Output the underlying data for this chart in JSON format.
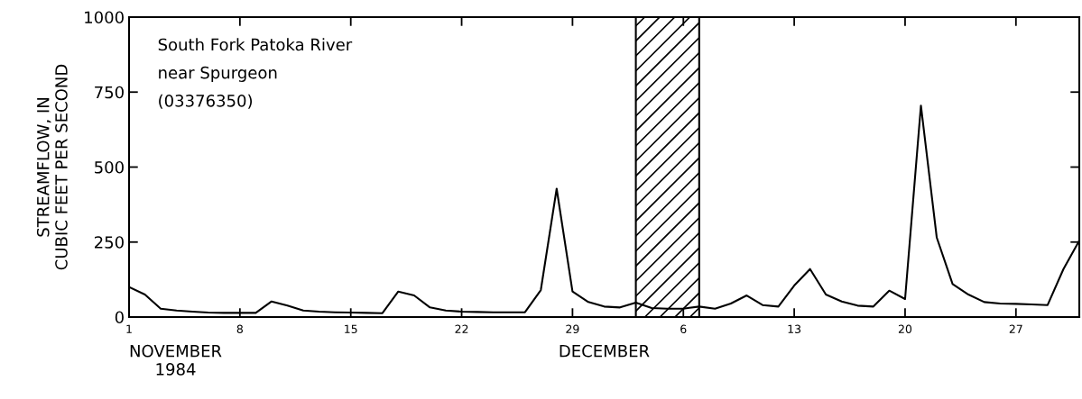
{
  "chart_data": {
    "type": "line",
    "ylabel": "STREAMFLOW, IN\nCUBIC FEET PER SECOND",
    "annotations": [
      "South Fork Patoka River\nnear Spurgeon\n(03376350)",
      "NOVEMBER\n1984",
      "DECEMBER"
    ],
    "x": [
      "1984-11-01",
      "1984-11-02",
      "1984-11-03",
      "1984-11-04",
      "1984-11-05",
      "1984-11-06",
      "1984-11-07",
      "1984-11-08",
      "1984-11-09",
      "1984-11-10",
      "1984-11-11",
      "1984-11-12",
      "1984-11-13",
      "1984-11-14",
      "1984-11-15",
      "1984-11-16",
      "1984-11-17",
      "1984-11-18",
      "1984-11-19",
      "1984-11-20",
      "1984-11-21",
      "1984-11-22",
      "1984-11-23",
      "1984-11-24",
      "1984-11-25",
      "1984-11-26",
      "1984-11-27",
      "1984-11-28",
      "1984-11-29",
      "1984-11-30",
      "1984-12-01",
      "1984-12-02",
      "1984-12-03",
      "1984-12-04",
      "1984-12-05",
      "1984-12-06",
      "1984-12-07",
      "1984-12-08",
      "1984-12-09",
      "1984-12-10",
      "1984-12-11",
      "1984-12-12",
      "1984-12-13",
      "1984-12-14",
      "1984-12-15",
      "1984-12-16",
      "1984-12-17",
      "1984-12-18",
      "1984-12-19",
      "1984-12-20",
      "1984-12-21",
      "1984-12-22",
      "1984-12-23",
      "1984-12-24",
      "1984-12-25",
      "1984-12-26",
      "1984-12-27",
      "1984-12-28",
      "1984-12-29",
      "1984-12-30",
      "1984-12-31"
    ],
    "series": [
      {
        "color": "#000000",
        "values": [
          100,
          75,
          28,
          22,
          18,
          15,
          14,
          14,
          14,
          52,
          38,
          22,
          18,
          16,
          15,
          14,
          13,
          85,
          72,
          32,
          22,
          18,
          17,
          16,
          16,
          16,
          90,
          428,
          85,
          50,
          35,
          32,
          48,
          30,
          28,
          28,
          35,
          28,
          45,
          72,
          40,
          35,
          105,
          160,
          75,
          52,
          38,
          35,
          88,
          60,
          705,
          265,
          110,
          75,
          50,
          45,
          44,
          42,
          40,
          160,
          255
        ]
      }
    ],
    "xlim": [
      "1984-11-01",
      "1984-12-31"
    ],
    "xticks": [
      {
        "value": "1984-11-01",
        "label": "1"
      },
      {
        "value": "1984-11-08",
        "label": "8"
      },
      {
        "value": "1984-11-15",
        "label": "15"
      },
      {
        "value": "1984-11-22",
        "label": "22"
      },
      {
        "value": "1984-11-29",
        "label": "29"
      },
      {
        "value": "1984-12-06",
        "label": "6"
      },
      {
        "value": "1984-12-13",
        "label": "13"
      },
      {
        "value": "1984-12-20",
        "label": "20"
      },
      {
        "value": "1984-12-27",
        "label": "27"
      }
    ],
    "ylim": [
      0,
      1000
    ],
    "yticks": [
      0,
      250,
      500,
      750,
      1000
    ],
    "bands": [
      {
        "axis": "x",
        "from": "1984-12-03",
        "to": "1984-12-07",
        "color": "#000000"
      }
    ],
    "grid": false,
    "legend": false,
    "marker": "none",
    "line_style": "solid"
  }
}
